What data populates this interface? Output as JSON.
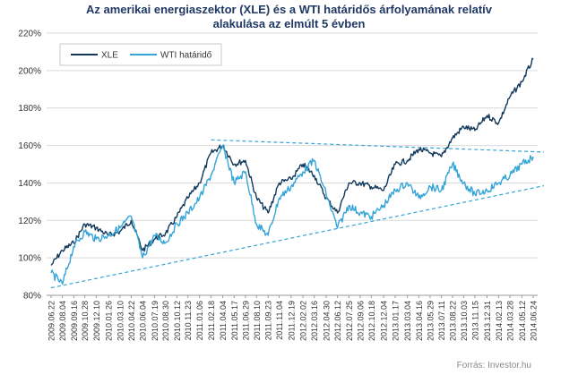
{
  "title_line1": "Az amerikai energiaszektor (XLE) és a WTI határidős árfolyamának relatív",
  "title_line2": "alakulása az elmúlt 5 évben",
  "source": "Forrás: Investor.hu",
  "chart_data": {
    "type": "line",
    "title": "Az amerikai energiaszektor (XLE) és a WTI határidős árfolyamának relatív alakulása az elmúlt 5 évben",
    "ylim": [
      80,
      220
    ],
    "y_ticks": [
      "80%",
      "100%",
      "120%",
      "140%",
      "160%",
      "180%",
      "200%",
      "220%"
    ],
    "y_tick_values": [
      80,
      100,
      120,
      140,
      160,
      180,
      200,
      220
    ],
    "grid": "horizontal",
    "legend_position": "top-left",
    "x_tick_labels": [
      "2009.06.22",
      "2009.08.04",
      "2009.09.16",
      "2009.10.28",
      "2009.12.10",
      "2010.01.26",
      "2010.03.10",
      "2010.04.22",
      "2010.06.04",
      "2010.07.19",
      "2010.08.30",
      "2010.10.12",
      "2010.11.23",
      "2011.01.06",
      "2011.02.18",
      "2011.04.04",
      "2011.05.17",
      "2011.06.29",
      "2011.08.10",
      "2011.09.23",
      "2011.11.04",
      "2011.12.19",
      "2012.02.02",
      "2012.03.16",
      "2012.04.30",
      "2012.06.12",
      "2012.07.25",
      "2012.09.06",
      "2012.10.18",
      "2012.12.04",
      "2013.01.17",
      "2013.03.04",
      "2013.04.16",
      "2013.05.29",
      "2013.07.11",
      "2013.08.22",
      "2013.10.03",
      "2013.11.15",
      "2013.12.31",
      "2014.02.13",
      "2014.03.28",
      "2014.05.12",
      "2014.06.24"
    ],
    "series": [
      {
        "name": "XLE",
        "color": "#12395b",
        "x": [
          "2009.06.22",
          "2009.08.04",
          "2009.09.16",
          "2009.10.28",
          "2009.12.10",
          "2010.01.26",
          "2010.03.10",
          "2010.04.22",
          "2010.06.04",
          "2010.07.19",
          "2010.08.30",
          "2010.10.12",
          "2010.11.23",
          "2011.01.06",
          "2011.02.18",
          "2011.04.04",
          "2011.05.17",
          "2011.06.29",
          "2011.08.10",
          "2011.09.23",
          "2011.11.04",
          "2011.12.19",
          "2012.02.02",
          "2012.03.16",
          "2012.04.30",
          "2012.06.12",
          "2012.07.25",
          "2012.09.06",
          "2012.10.18",
          "2012.12.04",
          "2013.01.17",
          "2013.03.04",
          "2013.04.16",
          "2013.05.29",
          "2013.07.11",
          "2013.08.22",
          "2013.10.03",
          "2013.11.15",
          "2013.12.31",
          "2014.02.13",
          "2014.03.28",
          "2014.05.12",
          "2014.06.24"
        ],
        "values": [
          96,
          104,
          108,
          118,
          116,
          112,
          114,
          120,
          104,
          110,
          113,
          122,
          132,
          140,
          156,
          160,
          150,
          152,
          132,
          124,
          140,
          142,
          150,
          144,
          132,
          124,
          140,
          140,
          138,
          136,
          150,
          152,
          158,
          156,
          154,
          164,
          170,
          168,
          176,
          172,
          186,
          194,
          206
        ]
      },
      {
        "name": "WTI határidő",
        "color": "#35a4d8",
        "x": [
          "2009.06.22",
          "2009.08.04",
          "2009.09.16",
          "2009.10.28",
          "2009.12.10",
          "2010.01.26",
          "2010.03.10",
          "2010.04.22",
          "2010.06.04",
          "2010.07.19",
          "2010.08.30",
          "2010.10.12",
          "2010.11.23",
          "2011.01.06",
          "2011.02.18",
          "2011.04.04",
          "2011.05.17",
          "2011.06.29",
          "2011.08.10",
          "2011.09.23",
          "2011.11.04",
          "2011.12.19",
          "2012.02.02",
          "2012.03.16",
          "2012.04.30",
          "2012.06.12",
          "2012.07.25",
          "2012.09.06",
          "2012.10.18",
          "2012.12.04",
          "2013.01.17",
          "2013.03.04",
          "2013.04.16",
          "2013.05.29",
          "2013.07.11",
          "2013.08.22",
          "2013.10.03",
          "2013.11.15",
          "2013.12.31",
          "2014.02.13",
          "2014.03.28",
          "2014.05.12",
          "2014.06.24"
        ],
        "values": [
          92,
          86,
          106,
          114,
          110,
          112,
          116,
          122,
          100,
          112,
          108,
          118,
          124,
          132,
          144,
          160,
          140,
          146,
          118,
          112,
          132,
          138,
          146,
          152,
          134,
          116,
          128,
          124,
          122,
          128,
          136,
          140,
          132,
          138,
          136,
          150,
          140,
          134,
          136,
          140,
          144,
          150,
          154
        ]
      }
    ],
    "trendlines": [
      {
        "style": "dashed",
        "color": "#35a4d8",
        "from": [
          "2011.02.18",
          163
        ],
        "to": [
          "2014.06.24",
          155
        ]
      },
      {
        "style": "dashed",
        "color": "#35a4d8",
        "from": [
          "2009.06.22",
          84
        ],
        "to": [
          "2014.06.24",
          137
        ]
      }
    ]
  }
}
